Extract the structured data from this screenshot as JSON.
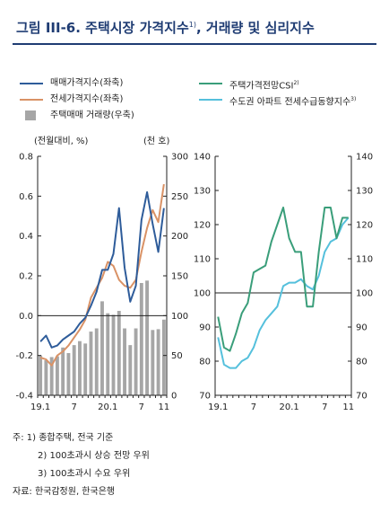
{
  "title_main": "그림 III-6. 주택시장 가격지수",
  "title_sup": "1)",
  "title_rest": ", 거래량 및 심리지수",
  "legend": {
    "sale_price": "매매가격지수(좌축)",
    "jeonse_price": "전세가격지수(좌축)",
    "transactions": "주택매매 거래량(우축)",
    "csi": "주택가격전망CSI",
    "csi_sup": "2)",
    "supply_demand": "수도권 아파트 전세수급동향지수",
    "supply_demand_sup": "3)"
  },
  "notes": {
    "line1": "주: 1) 종합주택, 전국 기준",
    "line2": "2) 100초과시 상승 전망 우위",
    "line3": "3) 100초과시 수요 우위",
    "source": "자료: 한국감정원, 한국은행"
  },
  "colors": {
    "sale": "#2e5c9a",
    "jeonse": "#d99266",
    "bars": "#a6a6a6",
    "csi": "#3a9e7a",
    "supply": "#55c0dc",
    "title": "#1f3c73"
  },
  "chart_data": [
    {
      "type": "bar+line",
      "left_unit": "(전월대비, %)",
      "right_unit": "(천 호)",
      "ylim_left": [
        -0.4,
        0.8
      ],
      "ylim_right": [
        0,
        300
      ],
      "left_ticks": [
        "-0.4",
        "-0.2",
        "0.0",
        "0.2",
        "0.4",
        "0.6",
        "0.8"
      ],
      "right_ticks": [
        "0",
        "50",
        "100",
        "150",
        "200",
        "250",
        "300"
      ],
      "x_tick_labels": [
        {
          "index": 0,
          "label": "19.1"
        },
        {
          "index": 6,
          "label": "7"
        },
        {
          "index": 12,
          "label": "20.1"
        },
        {
          "index": 18,
          "label": "7"
        },
        {
          "index": 22,
          "label": "11"
        }
      ],
      "series": [
        {
          "name": "매매가격지수(좌축)",
          "values": [
            -0.13,
            -0.1,
            -0.16,
            -0.15,
            -0.12,
            -0.1,
            -0.08,
            -0.04,
            -0.01,
            0.05,
            0.12,
            0.23,
            0.23,
            0.31,
            0.54,
            0.24,
            0.07,
            0.15,
            0.48,
            0.62,
            0.46,
            0.32,
            0.54
          ]
        },
        {
          "name": "전세가격지수(좌축)",
          "values": [
            -0.21,
            -0.22,
            -0.25,
            -0.2,
            -0.18,
            -0.15,
            -0.11,
            -0.07,
            -0.02,
            0.09,
            0.14,
            0.19,
            0.27,
            0.25,
            0.18,
            0.15,
            0.14,
            0.18,
            0.32,
            0.44,
            0.53,
            0.47,
            0.66
          ]
        },
        {
          "name": "주택매매 거래량(우축)",
          "values": [
            50,
            44,
            48,
            49,
            60,
            53,
            63,
            68,
            65,
            80,
            84,
            118,
            103,
            101,
            106,
            84,
            63,
            84,
            141,
            144,
            82,
            83,
            95
          ]
        }
      ]
    },
    {
      "type": "line",
      "ylim": [
        70,
        140
      ],
      "left_ticks": [
        "70",
        "80",
        "90",
        "100",
        "110",
        "120",
        "130",
        "140"
      ],
      "right_ticks": [
        "70",
        "80",
        "90",
        "100",
        "110",
        "120",
        "130",
        "140"
      ],
      "x_tick_labels": [
        {
          "index": 0,
          "label": "19.1"
        },
        {
          "index": 6,
          "label": "7"
        },
        {
          "index": 12,
          "label": "20.1"
        },
        {
          "index": 18,
          "label": "7"
        },
        {
          "index": 22,
          "label": "11"
        }
      ],
      "series": [
        {
          "name": "주택가격전망CSI",
          "values": [
            93,
            84,
            83,
            88,
            94,
            97,
            106,
            107,
            108,
            115,
            120,
            125,
            116,
            112,
            112,
            96,
            96,
            112,
            125,
            125,
            116,
            122,
            122
          ]
        },
        {
          "name": "수도권 아파트 전세수급동향지수",
          "values": [
            87,
            79,
            78,
            78,
            80,
            81,
            84,
            89,
            92,
            94,
            96,
            102,
            103,
            103,
            104,
            102,
            101,
            105,
            112,
            115,
            116,
            120,
            122
          ]
        }
      ]
    }
  ]
}
